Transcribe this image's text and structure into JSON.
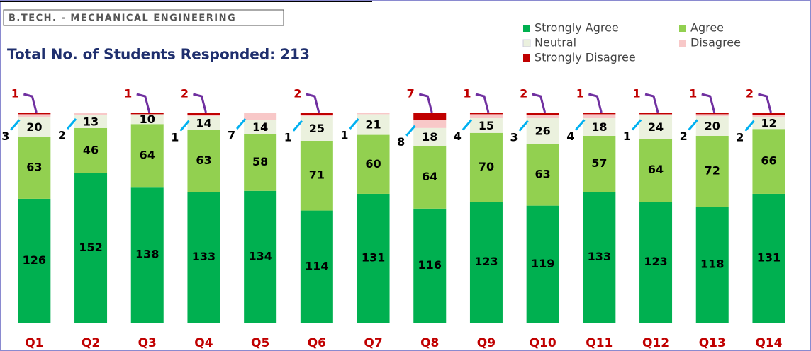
{
  "chart_data": {
    "type": "bar",
    "stacked": true,
    "header": "B.TECH. - MECHANICAL ENGINEERING",
    "title": "Total No. of Students Responded:  213",
    "categories": [
      "Q1",
      "Q2",
      "Q3",
      "Q4",
      "Q5",
      "Q6",
      "Q7",
      "Q8",
      "Q9",
      "Q10",
      "Q11",
      "Q12",
      "Q13",
      "Q14"
    ],
    "series": [
      {
        "name": "Strongly Agree",
        "color": "#00b050",
        "values": [
          126,
          152,
          138,
          133,
          134,
          114,
          131,
          116,
          123,
          119,
          133,
          123,
          118,
          131
        ]
      },
      {
        "name": "Agree",
        "color": "#92d050",
        "values": [
          63,
          46,
          64,
          63,
          58,
          71,
          60,
          64,
          70,
          63,
          57,
          64,
          72,
          66
        ]
      },
      {
        "name": "Neutral",
        "color": "#ebf1de",
        "values": [
          20,
          13,
          10,
          14,
          14,
          25,
          21,
          18,
          15,
          26,
          18,
          24,
          20,
          12
        ]
      },
      {
        "name": "Disagree",
        "color": "#f8c8c8",
        "values": [
          3,
          2,
          0,
          1,
          7,
          1,
          1,
          8,
          4,
          3,
          4,
          1,
          2,
          2
        ]
      },
      {
        "name": "Strongly Disagree",
        "color": "#c00000",
        "values": [
          1,
          0,
          1,
          2,
          0,
          2,
          0,
          7,
          1,
          2,
          1,
          1,
          1,
          2
        ]
      }
    ]
  }
}
